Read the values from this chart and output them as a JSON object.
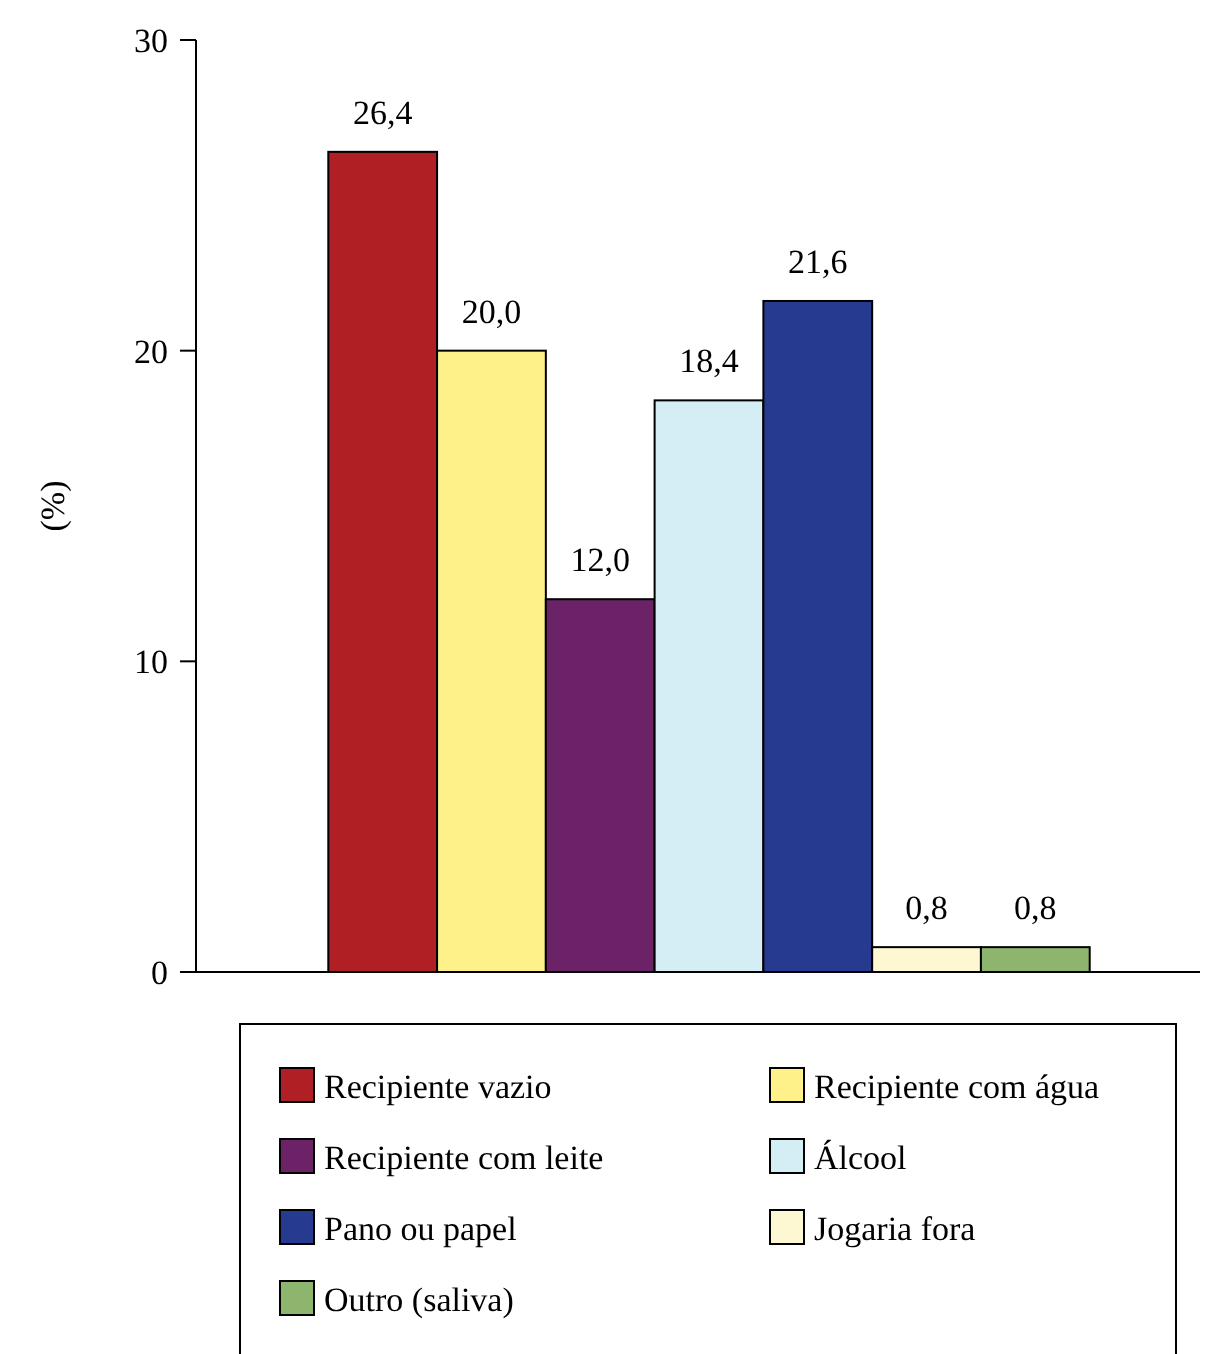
{
  "chart_data": {
    "type": "bar",
    "ylabel": "(%)",
    "categories": [
      null
    ],
    "series": [
      {
        "name": "Recipiente vazio",
        "color": "#b01f24",
        "values": [
          26.4
        ],
        "value_labels": [
          "26,4"
        ]
      },
      {
        "name": "Recipiente com água",
        "color": "#fff18a",
        "values": [
          20.0
        ],
        "value_labels": [
          "20,0"
        ]
      },
      {
        "name": "Recipiente com leite",
        "color": "#6b2266",
        "values": [
          12.0
        ],
        "value_labels": [
          "12,0"
        ]
      },
      {
        "name": "Álcool",
        "color": "#d5eef5",
        "values": [
          18.4
        ],
        "value_labels": [
          "18,4"
        ]
      },
      {
        "name": "Pano ou papel",
        "color": "#263a8f",
        "values": [
          21.6
        ],
        "value_labels": [
          "21,6"
        ]
      },
      {
        "name": "Jogaria fora",
        "color": "#fdf8d2",
        "values": [
          0.8
        ],
        "value_labels": [
          "0,8"
        ]
      },
      {
        "name": "Outro (saliva)",
        "color": "#8db56e",
        "values": [
          0.8
        ],
        "value_labels": [
          "0,8"
        ]
      }
    ],
    "ylim": [
      0,
      30
    ],
    "yticks": [
      0,
      10,
      20,
      30
    ],
    "legend": "bottom"
  }
}
